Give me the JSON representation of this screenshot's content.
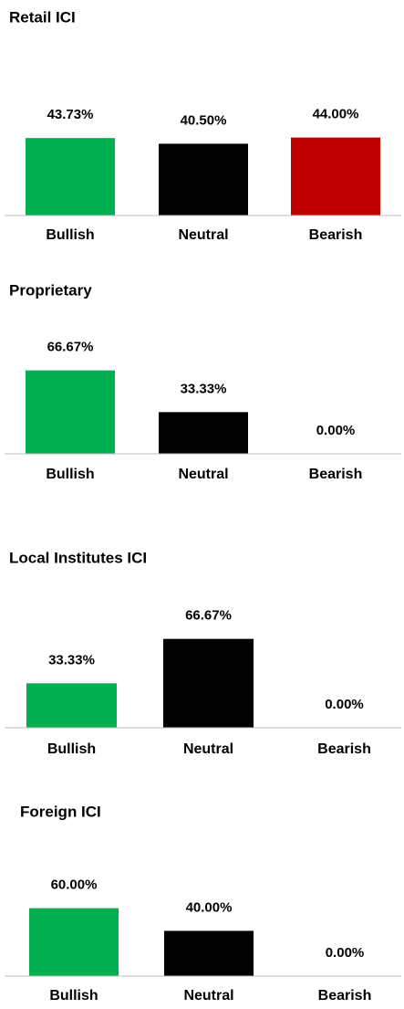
{
  "chart_data": [
    {
      "type": "bar",
      "title": "Retail ICI",
      "categories": [
        "Bullish",
        "Neutral",
        "Bearish"
      ],
      "values": [
        43.73,
        40.5,
        44.0
      ],
      "value_labels": [
        "43.73%",
        "40.50%",
        "44.00%"
      ],
      "colors": [
        "#00b050",
        "#000000",
        "#c00000"
      ],
      "ylim": [
        0,
        100
      ]
    },
    {
      "type": "bar",
      "title": "Proprietary",
      "categories": [
        "Bullish",
        "Neutral",
        "Bearish"
      ],
      "values": [
        66.67,
        33.33,
        0.0
      ],
      "value_labels": [
        "66.67%",
        "33.33%",
        "0.00%"
      ],
      "colors": [
        "#00b050",
        "#000000",
        "#c00000"
      ],
      "ylim": [
        0,
        100
      ]
    },
    {
      "type": "bar",
      "title": "Local Institutes ICI",
      "categories": [
        "Bullish",
        "Neutral",
        "Bearish"
      ],
      "values": [
        33.33,
        66.67,
        0.0
      ],
      "value_labels": [
        "33.33%",
        "66.67%",
        "0.00%"
      ],
      "colors": [
        "#00b050",
        "#000000",
        "#c00000"
      ],
      "ylim": [
        0,
        100
      ]
    },
    {
      "type": "bar",
      "title": "Foreign ICI",
      "categories": [
        "Bullish",
        "Neutral",
        "Bearish"
      ],
      "values": [
        60.0,
        40.0,
        0.0
      ],
      "value_labels": [
        "60.00%",
        "40.00%",
        "0.00%"
      ],
      "colors": [
        "#00b050",
        "#000000",
        "#c00000"
      ],
      "ylim": [
        0,
        100
      ]
    }
  ]
}
